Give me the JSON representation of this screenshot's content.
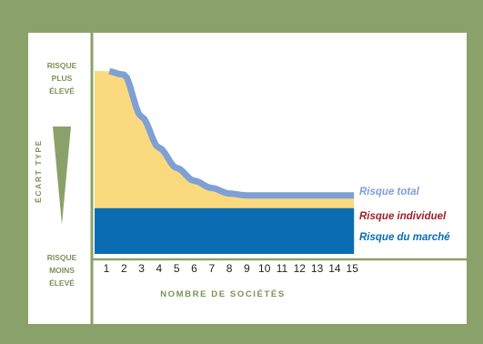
{
  "chart_data": {
    "type": "area",
    "title": "",
    "xlabel": "NOMBRE DE SOCIÉTÉS",
    "ylabel": "ÉCART TYPE",
    "y_top_label": [
      "RISQUE",
      "PLUS",
      "ÉLEVÉ"
    ],
    "y_bottom_label": [
      "RISQUE",
      "MOINS",
      "ÉLEVÉ"
    ],
    "categories": [
      "1",
      "2",
      "3",
      "4",
      "5",
      "6",
      "7",
      "8",
      "9",
      "10",
      "11",
      "12",
      "13",
      "14",
      "15"
    ],
    "x": [
      1,
      2,
      3,
      4,
      5,
      6,
      7,
      8,
      9,
      10,
      11,
      12,
      13,
      14,
      15
    ],
    "ylim": [
      0,
      100
    ],
    "series": [
      {
        "name": "Risque total",
        "values": [
          100,
          98,
          75,
          58,
          47,
          40,
          36,
          33,
          32,
          32,
          32,
          32,
          32,
          32,
          32
        ],
        "color": "#7ea0d4"
      },
      {
        "name": "Risque individuel",
        "values": [
          100,
          98,
          75,
          58,
          47,
          40,
          36,
          33,
          32,
          32,
          32,
          32,
          32,
          32,
          32
        ],
        "color": "#fbd97e"
      },
      {
        "name": "Risque du marché",
        "values": [
          25,
          25,
          25,
          25,
          25,
          25,
          25,
          25,
          25,
          25,
          25,
          25,
          25,
          25,
          25
        ],
        "color": "#0a6db3"
      }
    ],
    "legend_colors": [
      "#7ea0d4",
      "#9b2226",
      "#0a6db3"
    ],
    "legend_placement": "right"
  }
}
